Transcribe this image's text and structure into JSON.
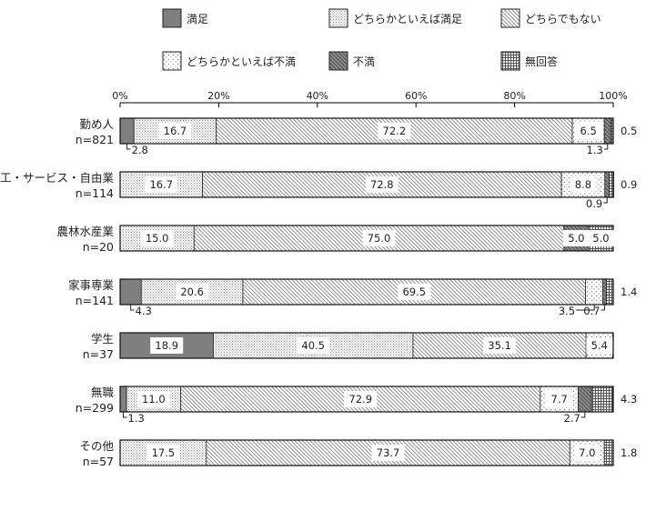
{
  "legend": [
    {
      "key": "manzoku",
      "label": "満足"
    },
    {
      "key": "dochiraka_manzoku",
      "label": "どちらかといえば満足"
    },
    {
      "key": "dochira_demo",
      "label": "どちらでもない"
    },
    {
      "key": "dochiraka_fuman",
      "label": "どちらかといえば不満"
    },
    {
      "key": "fuman",
      "label": "不満"
    },
    {
      "key": "mukaito",
      "label": "無回答"
    }
  ],
  "chart_data": {
    "type": "bar",
    "stacked": true,
    "orientation": "horizontal",
    "percent_scale": true,
    "xlim": [
      0,
      100
    ],
    "x_ticks": [
      "0%",
      "20%",
      "40%",
      "60%",
      "80%",
      "100%"
    ],
    "categories": [
      {
        "name": "勤め人",
        "n": "n=821"
      },
      {
        "name": "商工・サービス・自由業",
        "n": "n=114"
      },
      {
        "name": "農林水産業",
        "n": "n=20"
      },
      {
        "name": "家事専業",
        "n": "n=141"
      },
      {
        "name": "学生",
        "n": "n=37"
      },
      {
        "name": "無職",
        "n": "n=299"
      },
      {
        "name": "その他",
        "n": "n=57"
      }
    ],
    "series": [
      {
        "name": "満足",
        "values": [
          2.8,
          0.0,
          0.0,
          4.3,
          18.9,
          1.3,
          0.0
        ]
      },
      {
        "name": "どちらかといえば満足",
        "values": [
          16.7,
          16.7,
          15.0,
          20.6,
          40.5,
          11.0,
          17.5
        ]
      },
      {
        "name": "どちらでもない",
        "values": [
          72.2,
          72.8,
          75.0,
          69.5,
          35.1,
          72.9,
          73.7
        ]
      },
      {
        "name": "どちらかといえば不満",
        "values": [
          6.5,
          8.8,
          0.0,
          3.5,
          5.4,
          7.7,
          7.0
        ]
      },
      {
        "name": "不満",
        "values": [
          1.3,
          0.9,
          5.0,
          0.7,
          0.0,
          2.7,
          0.0
        ]
      },
      {
        "name": "無回答",
        "values": [
          0.5,
          0.9,
          5.0,
          1.4,
          0.0,
          4.3,
          1.8
        ]
      }
    ],
    "data_labels": [
      [
        {
          "s": 0,
          "text": "2.8",
          "pos": "below-left"
        },
        {
          "s": 1,
          "text": "16.7",
          "pos": "in"
        },
        {
          "s": 2,
          "text": "72.2",
          "pos": "in"
        },
        {
          "s": 3,
          "text": "6.5",
          "pos": "in"
        },
        {
          "s": 4,
          "text": "1.3",
          "pos": "below-right"
        },
        {
          "s": 5,
          "text": "0.5",
          "pos": "outside"
        }
      ],
      [
        {
          "s": 1,
          "text": "16.7",
          "pos": "in"
        },
        {
          "s": 2,
          "text": "72.8",
          "pos": "in"
        },
        {
          "s": 3,
          "text": "8.8",
          "pos": "in"
        },
        {
          "s": 4,
          "text": "0.9",
          "pos": "below-right"
        },
        {
          "s": 5,
          "text": "0.9",
          "pos": "outside"
        }
      ],
      [
        {
          "s": 1,
          "text": "15.0",
          "pos": "in"
        },
        {
          "s": 2,
          "text": "75.0",
          "pos": "in"
        },
        {
          "s": 4,
          "text": "5.0",
          "pos": "in"
        },
        {
          "s": 5,
          "text": "5.0",
          "pos": "in"
        }
      ],
      [
        {
          "s": 0,
          "text": "4.3",
          "pos": "below-left"
        },
        {
          "s": 1,
          "text": "20.6",
          "pos": "in"
        },
        {
          "s": 2,
          "text": "69.5",
          "pos": "in"
        },
        {
          "s": 3,
          "text": "3.5",
          "pos": "below-right-a"
        },
        {
          "s": 4,
          "text": "0.7",
          "pos": "below-right-b"
        },
        {
          "s": 5,
          "text": "1.4",
          "pos": "outside"
        }
      ],
      [
        {
          "s": 0,
          "text": "18.9",
          "pos": "in"
        },
        {
          "s": 1,
          "text": "40.5",
          "pos": "in"
        },
        {
          "s": 2,
          "text": "35.1",
          "pos": "in"
        },
        {
          "s": 3,
          "text": "5.4",
          "pos": "in"
        }
      ],
      [
        {
          "s": 0,
          "text": "1.3",
          "pos": "below-left"
        },
        {
          "s": 1,
          "text": "11.0",
          "pos": "in"
        },
        {
          "s": 2,
          "text": "72.9",
          "pos": "in"
        },
        {
          "s": 3,
          "text": "7.7",
          "pos": "in"
        },
        {
          "s": 4,
          "text": "2.7",
          "pos": "below-right"
        },
        {
          "s": 5,
          "text": "4.3",
          "pos": "outside"
        }
      ],
      [
        {
          "s": 1,
          "text": "17.5",
          "pos": "in"
        },
        {
          "s": 2,
          "text": "73.7",
          "pos": "in"
        },
        {
          "s": 3,
          "text": "7.0",
          "pos": "in"
        },
        {
          "s": 5,
          "text": "1.8",
          "pos": "outside"
        }
      ]
    ],
    "grid": false,
    "legend_position": "top"
  }
}
